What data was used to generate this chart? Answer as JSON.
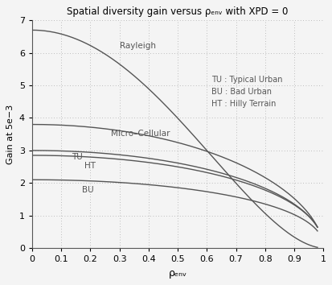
{
  "title": "Spatial diversity gain versus ρₑₙᵥ with XPD = 0",
  "xlabel": "ρₑₙᵥ",
  "ylabel": "Gain at 5e−3",
  "xlim": [
    0,
    1.0
  ],
  "ylim": [
    0,
    7
  ],
  "yticks": [
    0,
    1,
    2,
    3,
    4,
    5,
    6,
    7
  ],
  "xticks": [
    0,
    0.1,
    0.2,
    0.3,
    0.4,
    0.5,
    0.6,
    0.7,
    0.8,
    0.9,
    1.0
  ],
  "line_color": "#555555",
  "grid_color": "#aaaaaa",
  "background": "#f4f4f4",
  "annotation_text": "TU : Typical Urban\nBU : Bad Urban\nHT : Hilly Terrain",
  "rayleigh_label": "Rayleigh",
  "microcell_label": "Micro–Cellular",
  "tu_label": "TU",
  "ht_label": "HT",
  "bu_label": "BU",
  "rayleigh_g0": 6.7,
  "rayleigh_alpha": 1.8,
  "microcell_g0": 3.8,
  "microcell_alpha": 0.55,
  "tu_g0": 3.0,
  "tu_alpha": 0.48,
  "ht_g0": 2.85,
  "ht_alpha": 0.46,
  "bu_g0": 2.1,
  "bu_alpha": 0.43
}
